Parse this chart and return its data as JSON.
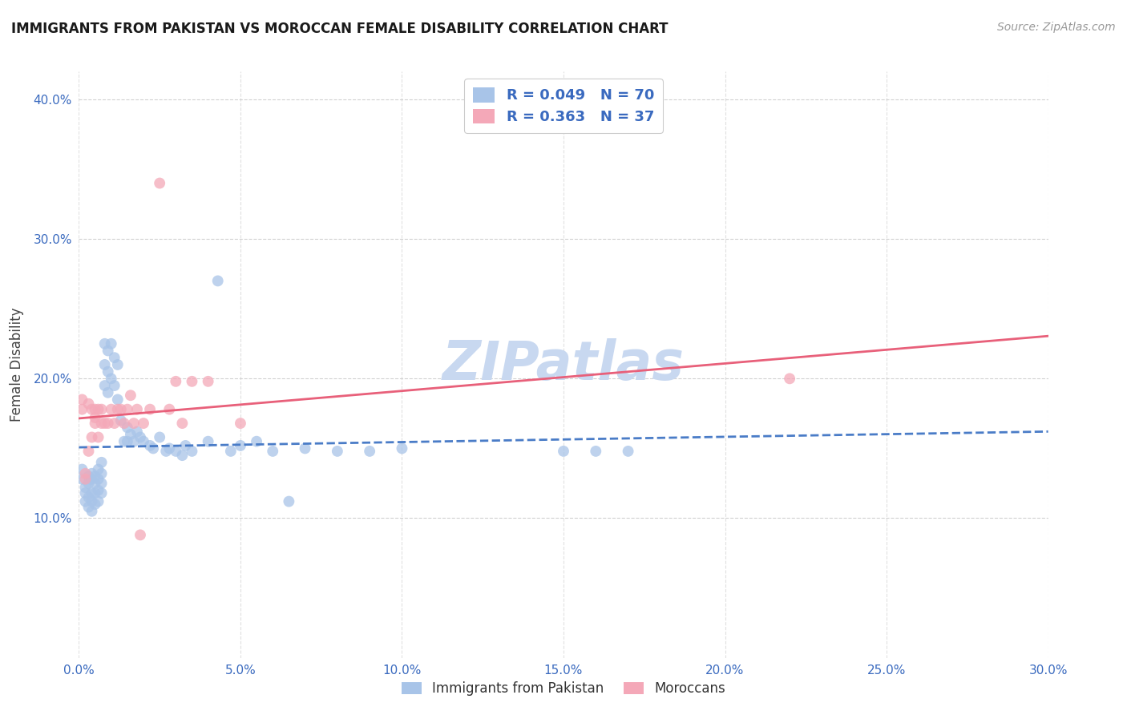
{
  "title": "IMMIGRANTS FROM PAKISTAN VS MOROCCAN FEMALE DISABILITY CORRELATION CHART",
  "source": "Source: ZipAtlas.com",
  "xlabel_pakistan": "Immigrants from Pakistan",
  "xlabel_moroccans": "Moroccans",
  "ylabel": "Female Disability",
  "watermark": "ZIPatlas",
  "xlim": [
    0.0,
    0.3
  ],
  "ylim": [
    0.0,
    0.42
  ],
  "xticks": [
    0.0,
    0.05,
    0.1,
    0.15,
    0.2,
    0.25,
    0.3
  ],
  "yticks": [
    0.1,
    0.2,
    0.3,
    0.4
  ],
  "ytick_labels": [
    "10.0%",
    "20.0%",
    "30.0%",
    "40.0%"
  ],
  "xtick_labels": [
    "0.0%",
    "5.0%",
    "10.0%",
    "15.0%",
    "20.0%",
    "25.0%",
    "30.0%"
  ],
  "legend_r_pakistan": "R = 0.049",
  "legend_n_pakistan": "N = 70",
  "legend_r_moroccans": "R = 0.363",
  "legend_n_moroccans": "N = 37",
  "color_pakistan": "#a8c4e8",
  "color_moroccans": "#f4a8b8",
  "color_pakistan_line": "#4a7cc7",
  "color_moroccans_line": "#e8607a",
  "color_axis_labels": "#3a6abf",
  "color_legend_text": "#3a6abf",
  "color_watermark": "#c8d8f0",
  "pakistan_x": [
    0.001,
    0.001,
    0.002,
    0.002,
    0.002,
    0.003,
    0.003,
    0.003,
    0.003,
    0.004,
    0.004,
    0.004,
    0.004,
    0.004,
    0.005,
    0.005,
    0.005,
    0.005,
    0.006,
    0.006,
    0.006,
    0.006,
    0.007,
    0.007,
    0.007,
    0.007,
    0.008,
    0.008,
    0.008,
    0.009,
    0.009,
    0.009,
    0.01,
    0.01,
    0.011,
    0.011,
    0.012,
    0.012,
    0.013,
    0.014,
    0.015,
    0.015,
    0.016,
    0.017,
    0.018,
    0.019,
    0.02,
    0.022,
    0.023,
    0.025,
    0.027,
    0.028,
    0.03,
    0.032,
    0.033,
    0.035,
    0.04,
    0.043,
    0.047,
    0.05,
    0.055,
    0.06,
    0.065,
    0.07,
    0.08,
    0.09,
    0.1,
    0.15,
    0.16,
    0.17
  ],
  "pakistan_y": [
    0.135,
    0.128,
    0.122,
    0.118,
    0.112,
    0.13,
    0.125,
    0.115,
    0.108,
    0.132,
    0.128,
    0.118,
    0.112,
    0.105,
    0.13,
    0.125,
    0.118,
    0.11,
    0.135,
    0.128,
    0.12,
    0.112,
    0.14,
    0.132,
    0.125,
    0.118,
    0.225,
    0.21,
    0.195,
    0.22,
    0.205,
    0.19,
    0.225,
    0.2,
    0.215,
    0.195,
    0.21,
    0.185,
    0.17,
    0.155,
    0.165,
    0.155,
    0.16,
    0.155,
    0.162,
    0.158,
    0.155,
    0.152,
    0.15,
    0.158,
    0.148,
    0.15,
    0.148,
    0.145,
    0.152,
    0.148,
    0.155,
    0.27,
    0.148,
    0.152,
    0.155,
    0.148,
    0.112,
    0.15,
    0.148,
    0.148,
    0.15,
    0.148,
    0.148,
    0.148
  ],
  "moroccans_x": [
    0.001,
    0.001,
    0.002,
    0.002,
    0.003,
    0.003,
    0.004,
    0.004,
    0.005,
    0.005,
    0.005,
    0.006,
    0.006,
    0.007,
    0.007,
    0.008,
    0.009,
    0.01,
    0.011,
    0.012,
    0.013,
    0.014,
    0.015,
    0.016,
    0.017,
    0.018,
    0.019,
    0.02,
    0.022,
    0.025,
    0.028,
    0.03,
    0.032,
    0.035,
    0.04,
    0.05,
    0.22
  ],
  "moroccans_y": [
    0.178,
    0.185,
    0.128,
    0.132,
    0.148,
    0.182,
    0.178,
    0.158,
    0.168,
    0.178,
    0.172,
    0.158,
    0.178,
    0.178,
    0.168,
    0.168,
    0.168,
    0.178,
    0.168,
    0.178,
    0.178,
    0.168,
    0.178,
    0.188,
    0.168,
    0.178,
    0.088,
    0.168,
    0.178,
    0.34,
    0.178,
    0.198,
    0.168,
    0.198,
    0.198,
    0.168,
    0.2
  ]
}
